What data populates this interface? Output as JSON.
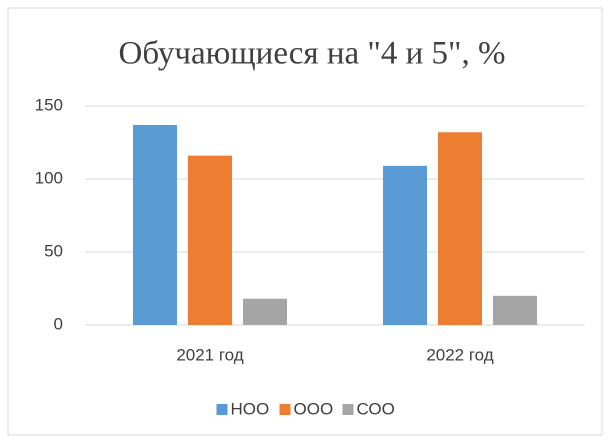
{
  "chart_data": {
    "type": "bar",
    "title": "Обучающиеся на \"4 и 5\", %",
    "categories": [
      "2021 год",
      "2022 год"
    ],
    "series": [
      {
        "name": "НОО",
        "color": "#5b9bd5",
        "values": [
          137,
          109
        ]
      },
      {
        "name": "ООО",
        "color": "#ed7d31",
        "values": [
          116,
          132
        ]
      },
      {
        "name": "СОО",
        "color": "#a5a5a5",
        "values": [
          18,
          20
        ]
      }
    ],
    "ylim": [
      0,
      150
    ],
    "yticks": [
      0,
      50,
      100,
      150
    ],
    "grid": true,
    "legend": "bottom"
  }
}
